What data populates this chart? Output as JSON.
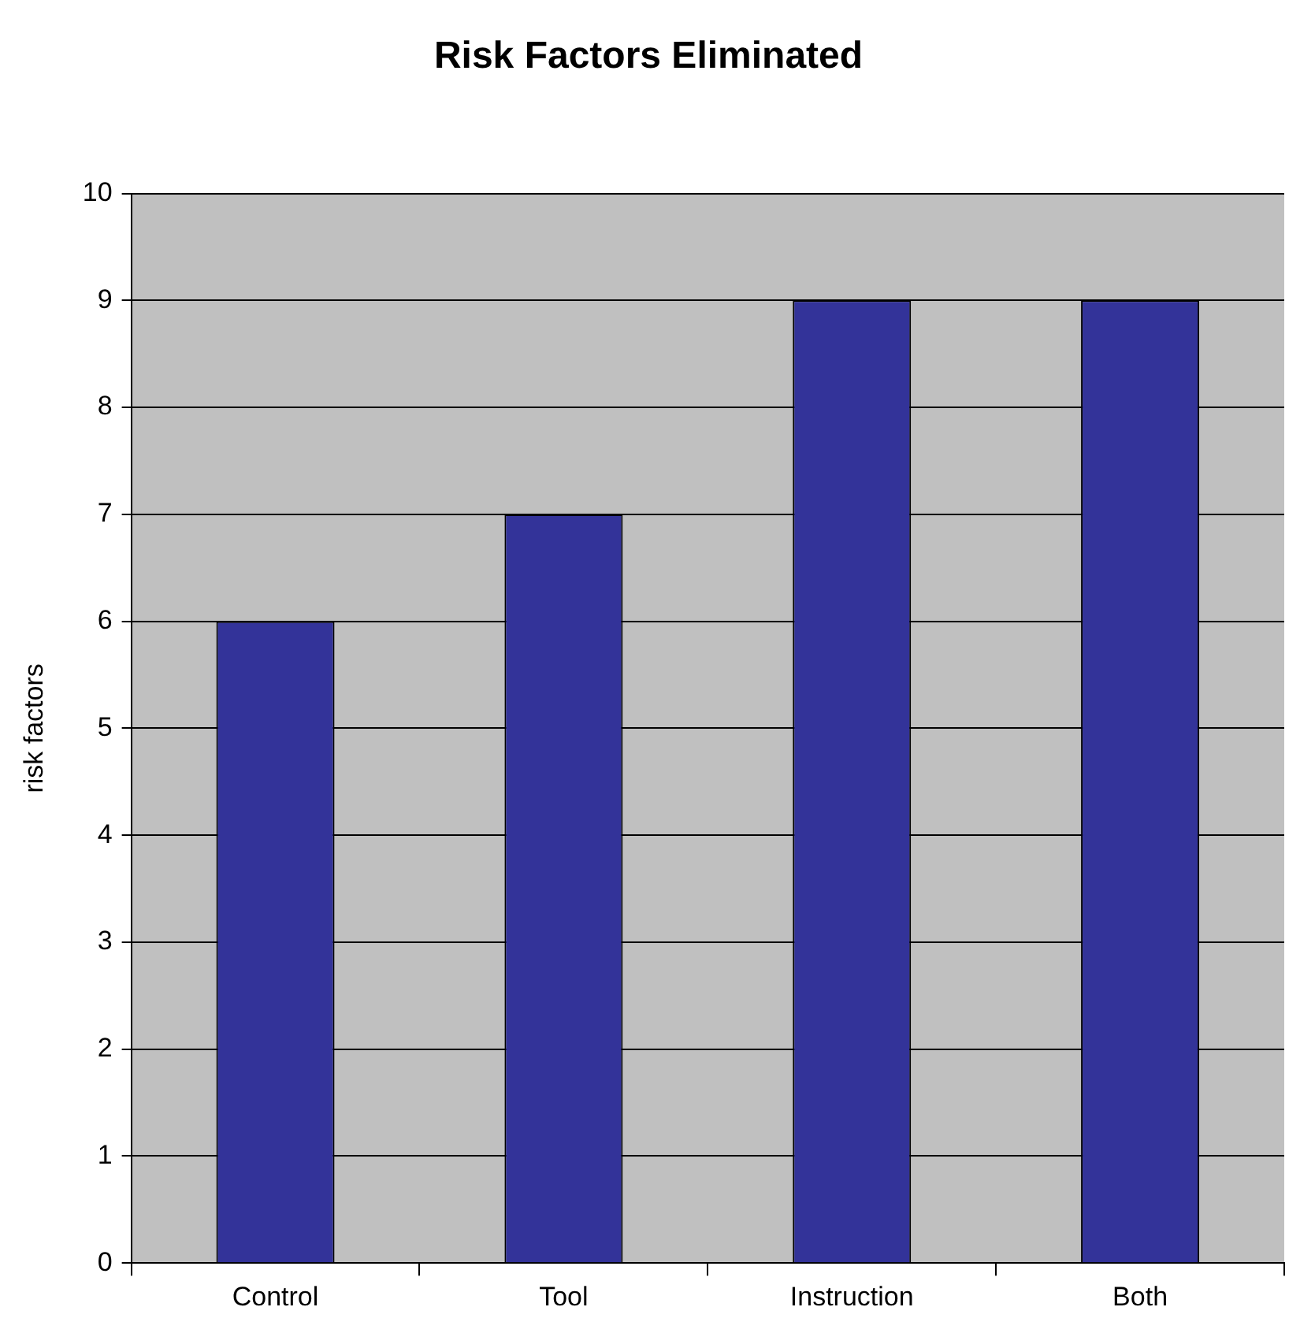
{
  "chart_data": {
    "type": "bar",
    "title": "Risk Factors Eliminated",
    "ylabel": "risk factors",
    "categories": [
      "Control",
      "Tool",
      "Instruction",
      "Both"
    ],
    "values": [
      6,
      7,
      9,
      9
    ],
    "color": "#333399",
    "ylim": [
      0,
      10
    ],
    "yticks": [
      0,
      1,
      2,
      3,
      4,
      5,
      6,
      7,
      8,
      9,
      10
    ],
    "grid": "y"
  }
}
